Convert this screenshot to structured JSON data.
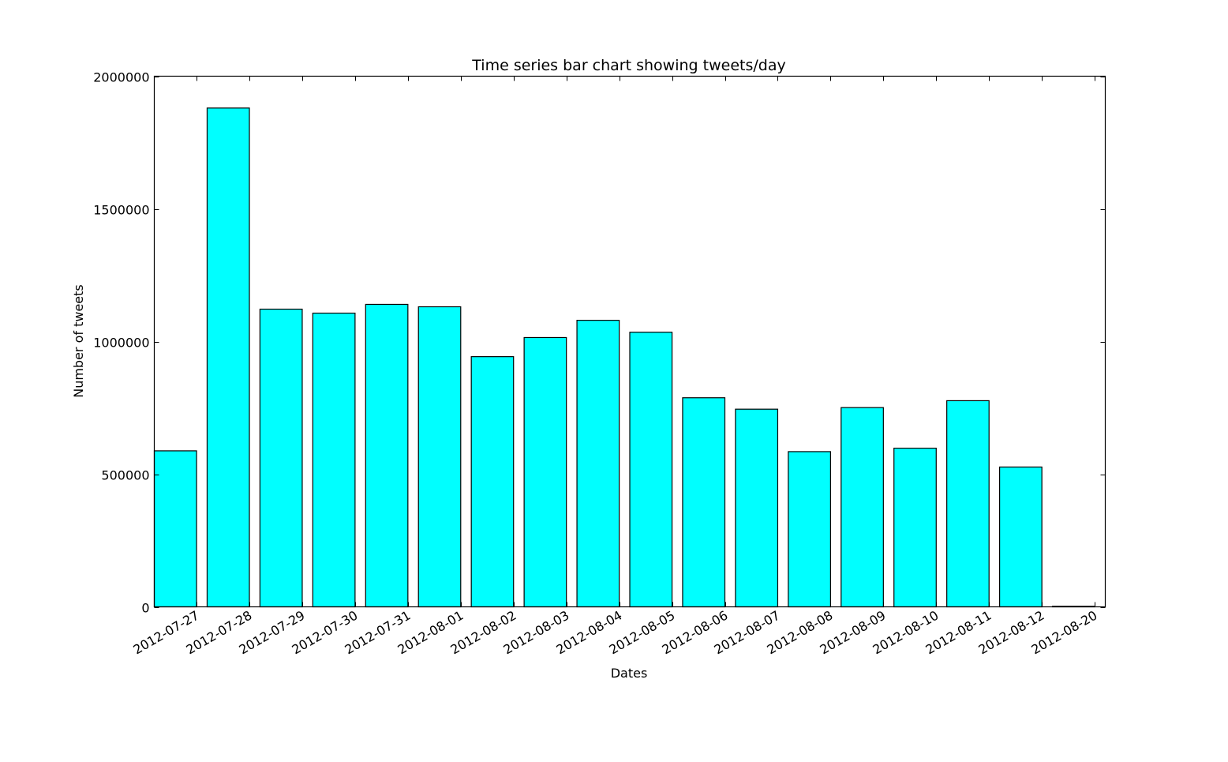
{
  "chart_data": {
    "type": "bar",
    "title": "Time series bar chart showing tweets/day",
    "xlabel": "Dates",
    "ylabel": "Number of tweets",
    "categories": [
      "2012-07-27",
      "2012-07-28",
      "2012-07-29",
      "2012-07-30",
      "2012-07-31",
      "2012-08-01",
      "2012-08-02",
      "2012-08-03",
      "2012-08-04",
      "2012-08-05",
      "2012-08-06",
      "2012-08-07",
      "2012-08-08",
      "2012-08-09",
      "2012-08-10",
      "2012-08-11",
      "2012-08-12",
      "2012-08-20"
    ],
    "values": [
      588000,
      1880000,
      1122000,
      1107000,
      1140000,
      1131000,
      943000,
      1015000,
      1080000,
      1035000,
      788000,
      745000,
      585000,
      751000,
      598000,
      777000,
      527000,
      2000
    ],
    "ylim": [
      0,
      2000000
    ],
    "y_ticks": [
      0,
      500000,
      1000000,
      1500000,
      2000000
    ],
    "y_tick_labels": [
      "0",
      "500000",
      "1000000",
      "1500000",
      "2000000"
    ],
    "bar_color": "#00ffff",
    "edge_color": "#000000",
    "grid": false,
    "legend": "none"
  }
}
